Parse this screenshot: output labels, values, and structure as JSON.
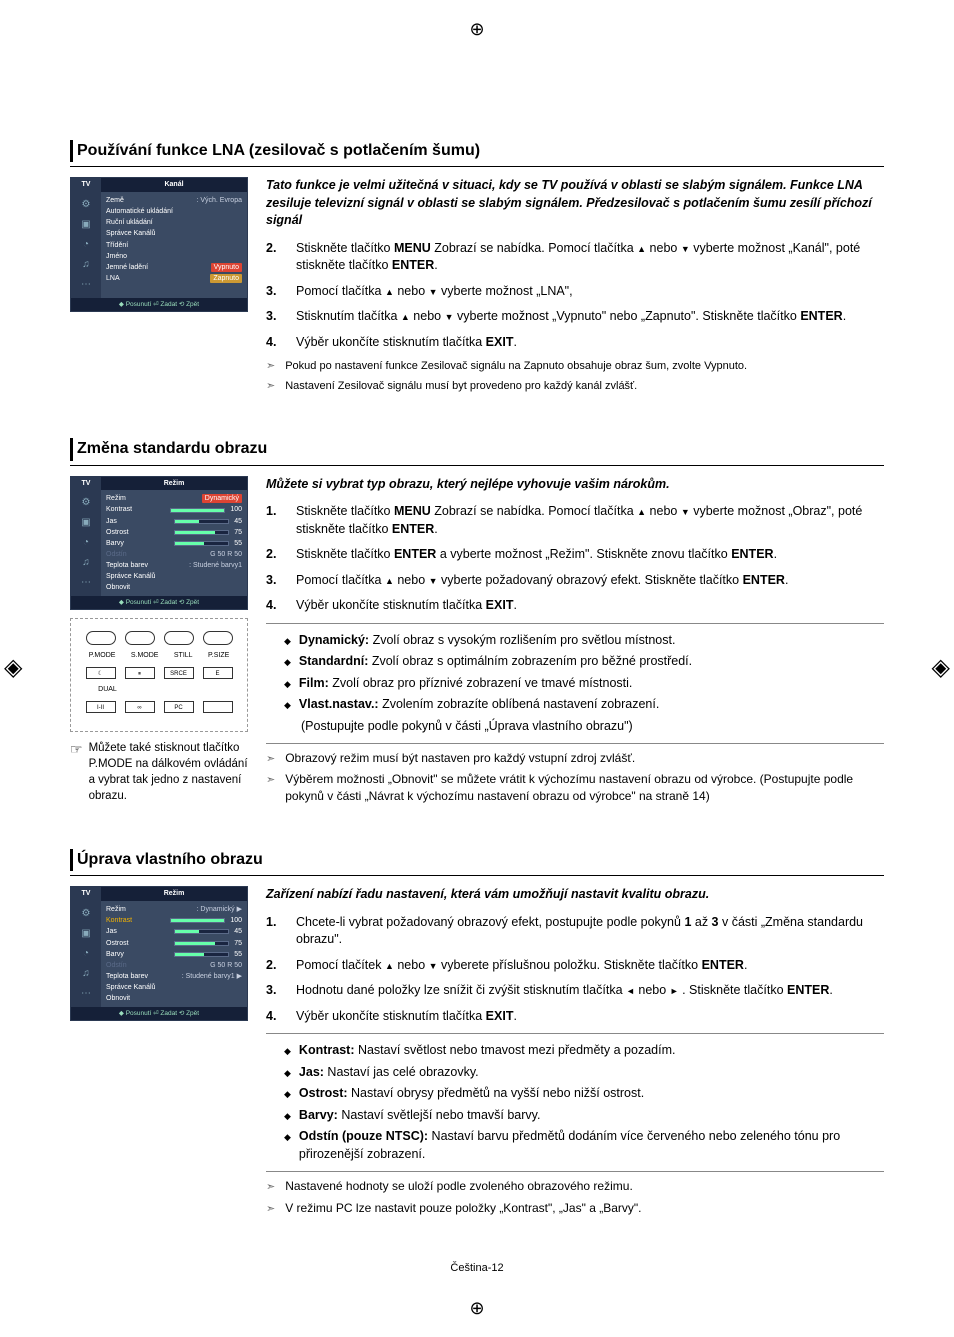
{
  "page_footer": "Čeština-12",
  "sec1": {
    "title": "Používání funkce LNA (zesilovač s potlačením šumu)",
    "intro": "Tato funkce je velmi užitečná v situaci, kdy se TV používá v oblasti se slabým signálem. Funkce LNA zesiluje televizní signál v oblasti se slabým signálem. Předzesilovač s potlačením šumu zesílí příchozí signál",
    "steps": [
      {
        "n": "2.",
        "t": "Stiskněte tlačítko MENU Zobrazí se nabídka. Pomocí tlačítka ▲ nebo ▼ vyberte možnost „Kanál\", poté stiskněte tlačítko ENTER."
      },
      {
        "n": "3.",
        "t": "Pomocí tlačítka ▲ nebo ▼ vyberte možnost „LNA\","
      },
      {
        "n": "3.",
        "t": "Stisknutím tlačítka ▲ nebo ▼ vyberte možnost „Vypnuto\" nebo „Zapnuto\". Stiskněte tlačítko ENTER."
      },
      {
        "n": "4.",
        "t": "Výběr ukončíte stisknutím tlačítka EXIT."
      }
    ],
    "arrows": [
      "Pokud po nastavení funkce Zesilovač signálu na Zapnuto obsahuje obraz šum, zvolte Vypnuto.",
      "Nastavení Zesilovač signálu musí byt provedeno pro každý kanál zvlášť."
    ],
    "osd": {
      "tv": "TV",
      "title": "Kanál",
      "rows": [
        {
          "lab": "Země",
          "val": ": Vých. Evropa"
        },
        {
          "lab": "Automatické ukládání",
          "val": ""
        },
        {
          "lab": "Ruční ukládání",
          "val": ""
        },
        {
          "lab": "Správce Kanálů",
          "val": ""
        },
        {
          "lab": "Třídění",
          "val": ""
        },
        {
          "lab": "Jméno",
          "val": ""
        },
        {
          "lab": "Jemné ladění",
          "val": "Vypnuto",
          "hl": true
        },
        {
          "lab": "LNA",
          "val": "Zapnuto",
          "hl2": true
        }
      ],
      "foot": "◆ Posunutí  ⏎ Zadat  ⟲ Zpět"
    }
  },
  "sec2": {
    "title": "Změna standardu obrazu",
    "intro": "Můžete si vybrat typ obrazu, který nejlépe vyhovuje vašim nárokům.",
    "steps": [
      {
        "n": "1.",
        "t": "Stiskněte tlačítko MENU Zobrazí se nabídka. Pomocí tlačítka ▲ nebo ▼ vyberte možnost „Obraz\", poté stiskněte tlačítko ENTER."
      },
      {
        "n": "2.",
        "t": "Stiskněte tlačítko ENTER a vyberte možnost „Režim\". Stiskněte znovu tlačítko ENTER."
      },
      {
        "n": "3.",
        "t": "Pomocí tlačítka ▲ nebo ▼  vyberte požadovaný obrazový efekt. Stiskněte tlačítko ENTER."
      },
      {
        "n": "4.",
        "t": "Výběr ukončíte stisknutím tlačítka EXIT."
      }
    ],
    "notes": [
      {
        "b": "Dynamický:",
        "t": " Zvolí obraz s vysokým rozlišením pro světlou místnost."
      },
      {
        "b": "Standardní:",
        "t": " Zvolí obraz s optimálním zobrazením pro běžné prostředí."
      },
      {
        "b": "Film:",
        "t": " Zvolí obraz pro příznivé zobrazení ve tmavé místnosti."
      },
      {
        "b": "Vlast.nastav.:",
        "t": " Zvolením zobrazíte oblíbená nastavení zobrazení."
      },
      {
        "b": "",
        "t": "(Postupujte podle pokynů v části „Úprava vlastního obrazu\")"
      }
    ],
    "arrows": [
      "Obrazový režim musí být nastaven pro každý vstupní zdroj zvlášť.",
      "Výběrem možnosti „Obnovit\" se můžete vrátit k výchozímu nastavení obrazu od výrobce. (Postupujte podle pokynů v části „Návrat k výchozímu  nastavení obrazu od výrobce\" na straně 14)"
    ],
    "osd": {
      "tv": "TV",
      "title": "Režim",
      "rows": [
        {
          "lab": "Režim",
          "val": "Dynamický",
          "hl": true
        },
        {
          "lab": "Kontrast",
          "bar": 100,
          "num": "100",
          "hl": true
        },
        {
          "lab": "Jas",
          "bar": 45,
          "num": "45"
        },
        {
          "lab": "Ostrost",
          "bar": 75,
          "num": "75",
          "hl": true
        },
        {
          "lab": "Barvy",
          "bar": 55,
          "num": "55"
        },
        {
          "lab": "Odstín",
          "dim": true,
          "val": "G 50          R 50"
        },
        {
          "lab": "Teplota barev",
          "val": ": Studené barvy1"
        },
        {
          "lab": "Správce Kanálů",
          "val": ""
        },
        {
          "lab": "Obnovit",
          "val": ""
        }
      ],
      "foot": "◆ Posunutí  ⏎ Zadat  ⟲ Zpět"
    },
    "remote_caption": "Můžete také stisknout tlačítko P.MODE na dálkovém ovládání a vybrat tak jedno z nastavení obrazu.",
    "remote_labels": {
      "r1": [
        "P.MODE",
        "S.MODE",
        "STILL",
        "P.SIZE"
      ],
      "r2": [
        "☾",
        "⏸",
        "SRCE",
        "E"
      ],
      "r3": [
        "DUAL",
        "",
        "",
        ""
      ],
      "r4": [
        "I-II",
        "∞",
        "PC",
        ""
      ]
    }
  },
  "sec3": {
    "title": "Úprava vlastního obrazu",
    "intro": "Zařízení nabízí řadu nastavení, která vám umožňují nastavit kvalitu obrazu.",
    "steps": [
      {
        "n": "1.",
        "t": "Chcete-li vybrat požadovaný obrazový efekt, postupujte podle pokynů 1 až 3 v části „Změna standardu obrazu\"."
      },
      {
        "n": "2.",
        "t": "Pomocí tlačítek ▲ nebo ▼ vyberete příslušnou položku. Stiskněte tlačítko ENTER."
      },
      {
        "n": "3.",
        "t": "Hodnotu dané položky lze snížit či zvýšit stisknutím tlačítka ◄ nebo ► . Stiskněte tlačítko ENTER."
      },
      {
        "n": "4.",
        "t": "Výběr ukončíte stisknutím tlačítka EXIT."
      }
    ],
    "notes": [
      {
        "b": "Kontrast:",
        "t": " Nastaví světlost nebo tmavost mezi předměty a pozadím."
      },
      {
        "b": "Jas:",
        "t": " Nastaví jas celé obrazovky."
      },
      {
        "b": "Ostrost:",
        "t": " Nastaví obrysy předmětů na vyšší nebo nižší ostrost."
      },
      {
        "b": "Barvy:",
        "t": " Nastaví světlejší nebo tmavší barvy."
      },
      {
        "b": "Odstín (pouze NTSC):",
        "t": " Nastaví barvu předmětů dodáním více červeného nebo zeleného tónu pro přirozenější zobrazení."
      }
    ],
    "arrows": [
      "Nastavené hodnoty se uloží podle zvoleného obrazového režimu.",
      "V režimu PC lze nastavit pouze položky „Kontrast\", „Jas\" a „Barvy\"."
    ],
    "osd": {
      "tv": "TV",
      "title": "Režim",
      "rows": [
        {
          "lab": "Režim",
          "val": ": Dynamický    ▶"
        },
        {
          "lab": "Kontrast",
          "bar": 100,
          "num": "100",
          "sel": true
        },
        {
          "lab": "Jas",
          "bar": 45,
          "num": "45"
        },
        {
          "lab": "Ostrost",
          "bar": 75,
          "num": "75"
        },
        {
          "lab": "Barvy",
          "bar": 55,
          "num": "55"
        },
        {
          "lab": "Odstín",
          "dim": true,
          "val": "G 50          R 50"
        },
        {
          "lab": "Teplota barev",
          "val": ": Studené barvy1  ▶"
        },
        {
          "lab": "Správce Kanálů",
          "val": ""
        },
        {
          "lab": "Obnovit",
          "val": ""
        }
      ],
      "foot": "◆ Posunutí  ⏎ Zadat  ⟲ Zpět"
    }
  },
  "palette": {
    "osd_bg": "#3a4a63",
    "osd_dark": "#152038",
    "osd_side": "#2b3952",
    "osd_hl": "#d43",
    "osd_hl2": "#c93",
    "osd_sel": "#f5b400",
    "osd_bar": "#6fa",
    "page_bg": "#ffffff",
    "text": "#000000"
  }
}
